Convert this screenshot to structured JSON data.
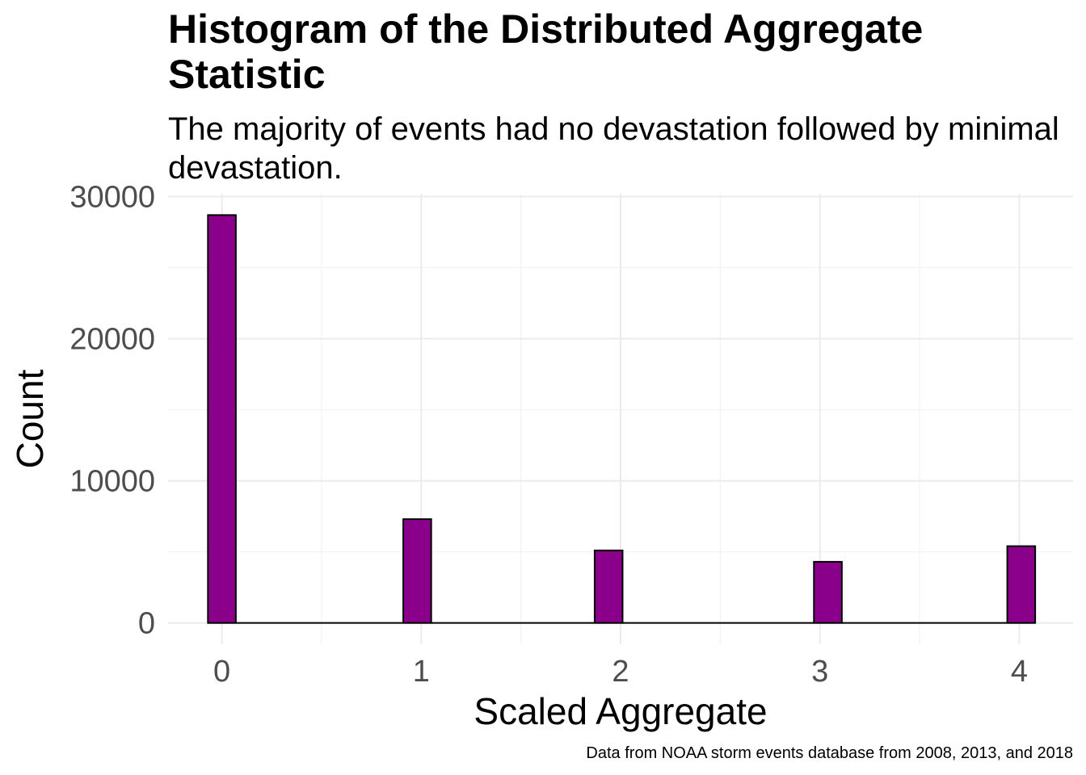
{
  "chart_data": {
    "type": "bar",
    "title": "Histogram of the Distributed Aggregate Statistic",
    "subtitle": "The majority of events had no devastation followed by minimal devastation.",
    "caption": "Data from NOAA storm events database from 2008, 2013, and 2018",
    "xlabel": "Scaled Aggregate",
    "ylabel": "Count",
    "x_ticks": [
      "0",
      "1",
      "2",
      "3",
      "4"
    ],
    "y_ticks": [
      "0",
      "10000",
      "20000",
      "30000"
    ],
    "xlim": [
      -0.27,
      4.27
    ],
    "ylim": [
      -1500,
      30200
    ],
    "grid": true,
    "bar_color": "#8B008B",
    "bar_edge_color": "#000000",
    "bin_width": 0.14,
    "bars": [
      {
        "x": 0.0,
        "count": 28700
      },
      {
        "x": 0.98,
        "count": 7300
      },
      {
        "x": 1.94,
        "count": 5100
      },
      {
        "x": 3.04,
        "count": 4300
      },
      {
        "x": 4.01,
        "count": 5400
      }
    ]
  }
}
